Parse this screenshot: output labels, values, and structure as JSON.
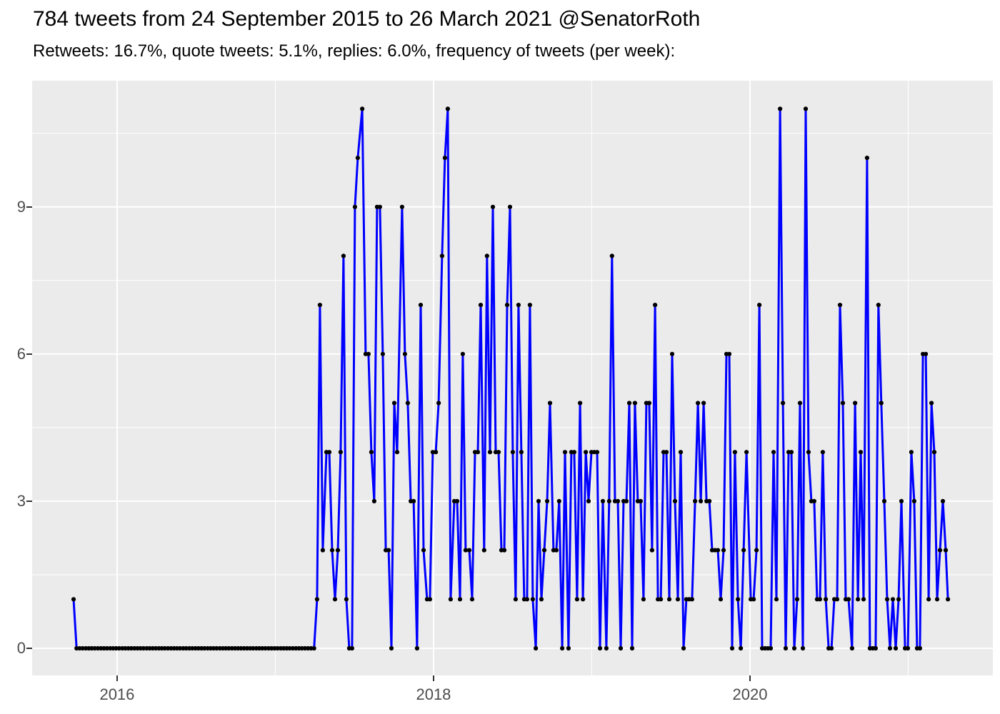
{
  "header": {
    "title": "784 tweets from 24 September 2015 to 26 March 2021 @SenatorRoth",
    "subtitle": "Retweets: 16.7%, quote tweets: 5.1%, replies: 6.0%, frequency of tweets (per week):"
  },
  "chart_data": {
    "type": "line",
    "title": "784 tweets from 24 September 2015 to 26 March 2021 @SenatorRoth",
    "subtitle": "Retweets: 16.7%, quote tweets: 5.1%, replies: 6.0%, frequency of tweets (per week):",
    "xlabel": "",
    "ylabel": "",
    "x_domain": [
      2015.463,
      2021.535
    ],
    "y_domain": [
      -0.553,
      11.573
    ],
    "x_ticks_major": [
      2016,
      2018,
      2020
    ],
    "x_tick_labels": [
      "2016",
      "2018",
      "2020"
    ],
    "x_ticks_minor": [
      2017,
      2019,
      2021
    ],
    "y_ticks_major": [
      0,
      3,
      6,
      9
    ],
    "y_tick_labels": [
      "0",
      "3",
      "6",
      "9"
    ],
    "y_ticks_minor": [
      1.5,
      4.5,
      7.5,
      10.5
    ],
    "legend": "none",
    "grid": "on",
    "line_color": "#0000FF",
    "point_color": "#000000",
    "panel_bg": "#EBEBEB",
    "grid_color": "#FFFFFF",
    "axis_text_color": "#4D4D4D",
    "tick_color": "#333333",
    "points": [
      [
        2015.725,
        1
      ],
      [
        2015.744,
        0
      ],
      [
        2015.763,
        0
      ],
      [
        2015.782,
        0
      ],
      [
        2015.802,
        0
      ],
      [
        2015.821,
        0
      ],
      [
        2015.84,
        0
      ],
      [
        2015.859,
        0
      ],
      [
        2015.879,
        0
      ],
      [
        2015.898,
        0
      ],
      [
        2015.917,
        0
      ],
      [
        2015.936,
        0
      ],
      [
        2015.956,
        0
      ],
      [
        2015.975,
        0
      ],
      [
        2015.994,
        0
      ],
      [
        2016.013,
        0
      ],
      [
        2016.033,
        0
      ],
      [
        2016.052,
        0
      ],
      [
        2016.071,
        0
      ],
      [
        2016.09,
        0
      ],
      [
        2016.11,
        0
      ],
      [
        2016.129,
        0
      ],
      [
        2016.148,
        0
      ],
      [
        2016.167,
        0
      ],
      [
        2016.187,
        0
      ],
      [
        2016.206,
        0
      ],
      [
        2016.225,
        0
      ],
      [
        2016.244,
        0
      ],
      [
        2016.264,
        0
      ],
      [
        2016.283,
        0
      ],
      [
        2016.302,
        0
      ],
      [
        2016.321,
        0
      ],
      [
        2016.341,
        0
      ],
      [
        2016.36,
        0
      ],
      [
        2016.379,
        0
      ],
      [
        2016.398,
        0
      ],
      [
        2016.418,
        0
      ],
      [
        2016.437,
        0
      ],
      [
        2016.456,
        0
      ],
      [
        2016.475,
        0
      ],
      [
        2016.495,
        0
      ],
      [
        2016.514,
        0
      ],
      [
        2016.533,
        0
      ],
      [
        2016.552,
        0
      ],
      [
        2016.572,
        0
      ],
      [
        2016.591,
        0
      ],
      [
        2016.61,
        0
      ],
      [
        2016.629,
        0
      ],
      [
        2016.649,
        0
      ],
      [
        2016.668,
        0
      ],
      [
        2016.687,
        0
      ],
      [
        2016.706,
        0
      ],
      [
        2016.726,
        0
      ],
      [
        2016.745,
        0
      ],
      [
        2016.764,
        0
      ],
      [
        2016.783,
        0
      ],
      [
        2016.803,
        0
      ],
      [
        2016.822,
        0
      ],
      [
        2016.841,
        0
      ],
      [
        2016.86,
        0
      ],
      [
        2016.88,
        0
      ],
      [
        2016.899,
        0
      ],
      [
        2016.918,
        0
      ],
      [
        2016.937,
        0
      ],
      [
        2016.957,
        0
      ],
      [
        2016.976,
        0
      ],
      [
        2016.995,
        0
      ],
      [
        2017.014,
        0
      ],
      [
        2017.034,
        0
      ],
      [
        2017.053,
        0
      ],
      [
        2017.072,
        0
      ],
      [
        2017.091,
        0
      ],
      [
        2017.111,
        0
      ],
      [
        2017.13,
        0
      ],
      [
        2017.149,
        0
      ],
      [
        2017.168,
        0
      ],
      [
        2017.188,
        0
      ],
      [
        2017.207,
        0
      ],
      [
        2017.226,
        0
      ],
      [
        2017.245,
        0
      ],
      [
        2017.264,
        1
      ],
      [
        2017.282,
        7
      ],
      [
        2017.3,
        2
      ],
      [
        2017.323,
        4
      ],
      [
        2017.341,
        4
      ],
      [
        2017.359,
        2
      ],
      [
        2017.377,
        1
      ],
      [
        2017.395,
        2
      ],
      [
        2017.413,
        4
      ],
      [
        2017.431,
        8
      ],
      [
        2017.449,
        1
      ],
      [
        2017.467,
        0
      ],
      [
        2017.485,
        0
      ],
      [
        2017.503,
        9
      ],
      [
        2017.521,
        10
      ],
      [
        2017.549,
        11
      ],
      [
        2017.571,
        6
      ],
      [
        2017.589,
        6
      ],
      [
        2017.607,
        4
      ],
      [
        2017.625,
        3
      ],
      [
        2017.643,
        9
      ],
      [
        2017.661,
        9
      ],
      [
        2017.679,
        6
      ],
      [
        2017.698,
        2
      ],
      [
        2017.716,
        2
      ],
      [
        2017.734,
        0
      ],
      [
        2017.752,
        5
      ],
      [
        2017.77,
        4
      ],
      [
        2017.801,
        9
      ],
      [
        2017.819,
        6
      ],
      [
        2017.837,
        5
      ],
      [
        2017.856,
        3
      ],
      [
        2017.874,
        3
      ],
      [
        2017.896,
        0
      ],
      [
        2017.919,
        7
      ],
      [
        2017.937,
        2
      ],
      [
        2017.959,
        1
      ],
      [
        2017.977,
        1
      ],
      [
        2017.995,
        4
      ],
      [
        2018.014,
        4
      ],
      [
        2018.032,
        5
      ],
      [
        2018.054,
        8
      ],
      [
        2018.072,
        10
      ],
      [
        2018.09,
        11
      ],
      [
        2018.108,
        1
      ],
      [
        2018.131,
        3
      ],
      [
        2018.149,
        3
      ],
      [
        2018.167,
        1
      ],
      [
        2018.185,
        6
      ],
      [
        2018.203,
        2
      ],
      [
        2018.226,
        2
      ],
      [
        2018.244,
        1
      ],
      [
        2018.262,
        4
      ],
      [
        2018.28,
        4
      ],
      [
        2018.298,
        7
      ],
      [
        2018.32,
        2
      ],
      [
        2018.338,
        8
      ],
      [
        2018.357,
        4
      ],
      [
        2018.375,
        9
      ],
      [
        2018.393,
        4
      ],
      [
        2018.411,
        4
      ],
      [
        2018.429,
        2
      ],
      [
        2018.447,
        2
      ],
      [
        2018.465,
        7
      ],
      [
        2018.483,
        9
      ],
      [
        2018.501,
        4
      ],
      [
        2018.519,
        1
      ],
      [
        2018.537,
        7
      ],
      [
        2018.555,
        4
      ],
      [
        2018.573,
        1
      ],
      [
        2018.591,
        1
      ],
      [
        2018.609,
        7
      ],
      [
        2018.627,
        1
      ],
      [
        2018.646,
        0
      ],
      [
        2018.664,
        3
      ],
      [
        2018.682,
        1
      ],
      [
        2018.7,
        2
      ],
      [
        2018.718,
        3
      ],
      [
        2018.736,
        5
      ],
      [
        2018.758,
        2
      ],
      [
        2018.776,
        2
      ],
      [
        2018.794,
        3
      ],
      [
        2018.813,
        0
      ],
      [
        2018.831,
        4
      ],
      [
        2018.853,
        0
      ],
      [
        2018.871,
        4
      ],
      [
        2018.889,
        4
      ],
      [
        2018.907,
        1
      ],
      [
        2018.926,
        5
      ],
      [
        2018.944,
        1
      ],
      [
        2018.962,
        4
      ],
      [
        2018.98,
        3
      ],
      [
        2018.998,
        4
      ],
      [
        2019.016,
        4
      ],
      [
        2019.034,
        4
      ],
      [
        2019.052,
        0
      ],
      [
        2019.07,
        3
      ],
      [
        2019.092,
        0
      ],
      [
        2019.11,
        3
      ],
      [
        2019.128,
        8
      ],
      [
        2019.147,
        3
      ],
      [
        2019.165,
        3
      ],
      [
        2019.183,
        0
      ],
      [
        2019.201,
        3
      ],
      [
        2019.219,
        3
      ],
      [
        2019.237,
        5
      ],
      [
        2019.255,
        0
      ],
      [
        2019.273,
        5
      ],
      [
        2019.291,
        3
      ],
      [
        2019.309,
        3
      ],
      [
        2019.327,
        1
      ],
      [
        2019.345,
        5
      ],
      [
        2019.363,
        5
      ],
      [
        2019.381,
        2
      ],
      [
        2019.4,
        7
      ],
      [
        2019.418,
        1
      ],
      [
        2019.436,
        1
      ],
      [
        2019.454,
        4
      ],
      [
        2019.472,
        4
      ],
      [
        2019.49,
        1
      ],
      [
        2019.508,
        6
      ],
      [
        2019.526,
        3
      ],
      [
        2019.544,
        1
      ],
      [
        2019.562,
        4
      ],
      [
        2019.58,
        0
      ],
      [
        2019.598,
        1
      ],
      [
        2019.616,
        1
      ],
      [
        2019.634,
        1
      ],
      [
        2019.653,
        3
      ],
      [
        2019.671,
        5
      ],
      [
        2019.689,
        3
      ],
      [
        2019.707,
        5
      ],
      [
        2019.725,
        3
      ],
      [
        2019.743,
        3
      ],
      [
        2019.761,
        2
      ],
      [
        2019.779,
        2
      ],
      [
        2019.797,
        2
      ],
      [
        2019.815,
        1
      ],
      [
        2019.833,
        2
      ],
      [
        2019.851,
        6
      ],
      [
        2019.869,
        6
      ],
      [
        2019.887,
        0
      ],
      [
        2019.905,
        4
      ],
      [
        2019.924,
        1
      ],
      [
        2019.942,
        0
      ],
      [
        2019.96,
        2
      ],
      [
        2019.978,
        4
      ],
      [
        2020.005,
        1
      ],
      [
        2020.023,
        1
      ],
      [
        2020.041,
        2
      ],
      [
        2020.059,
        7
      ],
      [
        2020.077,
        0
      ],
      [
        2020.095,
        0
      ],
      [
        2020.113,
        0
      ],
      [
        2020.131,
        0
      ],
      [
        2020.149,
        4
      ],
      [
        2020.167,
        1
      ],
      [
        2020.19,
        11
      ],
      [
        2020.208,
        5
      ],
      [
        2020.226,
        0
      ],
      [
        2020.244,
        4
      ],
      [
        2020.262,
        4
      ],
      [
        2020.28,
        0
      ],
      [
        2020.298,
        1
      ],
      [
        2020.316,
        5
      ],
      [
        2020.334,
        0
      ],
      [
        2020.352,
        11
      ],
      [
        2020.37,
        4
      ],
      [
        2020.388,
        3
      ],
      [
        2020.406,
        3
      ],
      [
        2020.424,
        1
      ],
      [
        2020.442,
        1
      ],
      [
        2020.46,
        4
      ],
      [
        2020.479,
        1
      ],
      [
        2020.497,
        0
      ],
      [
        2020.515,
        0
      ],
      [
        2020.533,
        1
      ],
      [
        2020.551,
        1
      ],
      [
        2020.569,
        7
      ],
      [
        2020.587,
        5
      ],
      [
        2020.605,
        1
      ],
      [
        2020.623,
        1
      ],
      [
        2020.645,
        0
      ],
      [
        2020.664,
        5
      ],
      [
        2020.682,
        1
      ],
      [
        2020.7,
        4
      ],
      [
        2020.718,
        1
      ],
      [
        2020.74,
        10
      ],
      [
        2020.758,
        0
      ],
      [
        2020.776,
        0
      ],
      [
        2020.794,
        0
      ],
      [
        2020.812,
        7
      ],
      [
        2020.83,
        5
      ],
      [
        2020.849,
        3
      ],
      [
        2020.867,
        1
      ],
      [
        2020.885,
        0
      ],
      [
        2020.903,
        1
      ],
      [
        2020.921,
        0
      ],
      [
        2020.939,
        1
      ],
      [
        2020.957,
        3
      ],
      [
        2020.98,
        0
      ],
      [
        2020.998,
        0
      ],
      [
        2021.02,
        4
      ],
      [
        2021.038,
        3
      ],
      [
        2021.056,
        0
      ],
      [
        2021.074,
        0
      ],
      [
        2021.093,
        6
      ],
      [
        2021.111,
        6
      ],
      [
        2021.129,
        1
      ],
      [
        2021.147,
        5
      ],
      [
        2021.165,
        4
      ],
      [
        2021.183,
        1
      ],
      [
        2021.201,
        2
      ],
      [
        2021.219,
        3
      ],
      [
        2021.237,
        2
      ],
      [
        2021.251,
        1
      ]
    ]
  }
}
